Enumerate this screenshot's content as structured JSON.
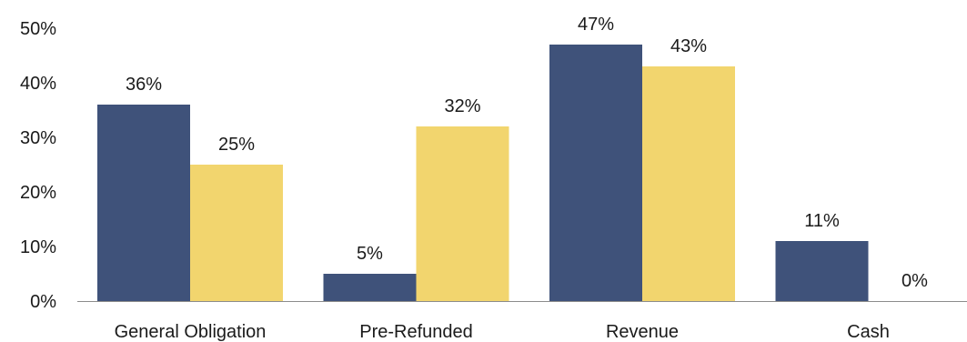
{
  "chart_data": {
    "type": "bar",
    "categories": [
      "General Obligation",
      "Pre-Refunded",
      "Revenue",
      "Cash"
    ],
    "series": [
      {
        "values": [
          36,
          5,
          47,
          11
        ],
        "labels": [
          "36%",
          "5%",
          "47%",
          "11%"
        ],
        "color": "#3f527a"
      },
      {
        "values": [
          25,
          32,
          43,
          0
        ],
        "labels": [
          "25%",
          "32%",
          "43%",
          "0%"
        ],
        "color": "#f2d56e"
      }
    ],
    "yticks": [
      0,
      10,
      20,
      30,
      40,
      50
    ],
    "ytick_labels": [
      "0%",
      "10%",
      "20%",
      "30%",
      "40%",
      "50%"
    ],
    "ylim": [
      0,
      50
    ],
    "grid": false,
    "legend": "none"
  }
}
